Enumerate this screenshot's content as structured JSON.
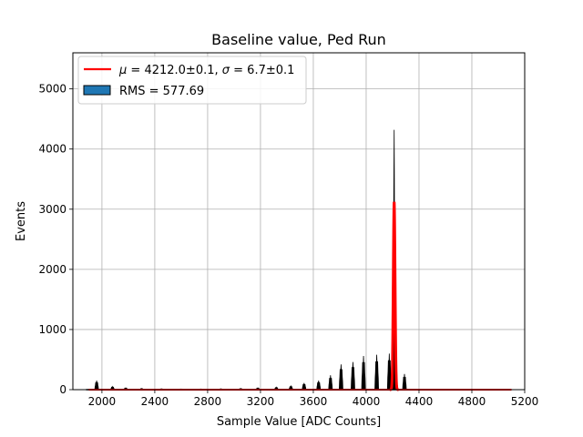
{
  "chart_data": {
    "type": "histogram",
    "title": "Baseline value, Ped Run",
    "xlabel": "Sample Value [ADC Counts]",
    "ylabel": "Events",
    "xlim": [
      1780,
      5200
    ],
    "ylim": [
      0,
      5600
    ],
    "xticks": [
      2000,
      2400,
      2800,
      3200,
      3600,
      4000,
      4400,
      4800,
      5200
    ],
    "yticks": [
      0,
      1000,
      2000,
      3000,
      4000,
      5000
    ],
    "grid": true,
    "legend_position": "top-left",
    "histogram": {
      "name": "RMS = 577.69",
      "face_color": "#1f77b4",
      "edge_color": "#000000",
      "x_range": [
        1880,
        5100
      ],
      "clusters": [
        {
          "center": 1960,
          "height": 150
        },
        {
          "center": 2080,
          "height": 50
        },
        {
          "center": 2180,
          "height": 30
        },
        {
          "center": 2300,
          "height": 20
        },
        {
          "center": 2450,
          "height": 15
        },
        {
          "center": 2600,
          "height": 12
        },
        {
          "center": 2750,
          "height": 12
        },
        {
          "center": 2900,
          "height": 15
        },
        {
          "center": 3050,
          "height": 20
        },
        {
          "center": 3180,
          "height": 30
        },
        {
          "center": 3320,
          "height": 40
        },
        {
          "center": 3430,
          "height": 60
        },
        {
          "center": 3530,
          "height": 110
        },
        {
          "center": 3640,
          "height": 150
        },
        {
          "center": 3730,
          "height": 240
        },
        {
          "center": 3810,
          "height": 420
        },
        {
          "center": 3900,
          "height": 460
        },
        {
          "center": 3980,
          "height": 560
        },
        {
          "center": 4080,
          "height": 580
        },
        {
          "center": 4175,
          "height": 600
        },
        {
          "center": 4290,
          "height": 260
        }
      ],
      "peak": [
        {
          "x": 4200,
          "y": 780
        },
        {
          "x": 4205,
          "y": 1700
        },
        {
          "x": 4210,
          "y": 3600
        },
        {
          "x": 4212,
          "y": 4320
        },
        {
          "x": 4214,
          "y": 3100
        },
        {
          "x": 4218,
          "y": 2500
        },
        {
          "x": 4222,
          "y": 900
        }
      ]
    },
    "fit": {
      "name": "$\\mu = 4212.0$±0.1, $\\sigma = 6.7$±0.1",
      "color": "#ff0000",
      "type": "gaussian",
      "mu": 4212.0,
      "sigma": 6.7,
      "amplitude": 3120,
      "x_range": [
        1900,
        5100
      ]
    }
  }
}
